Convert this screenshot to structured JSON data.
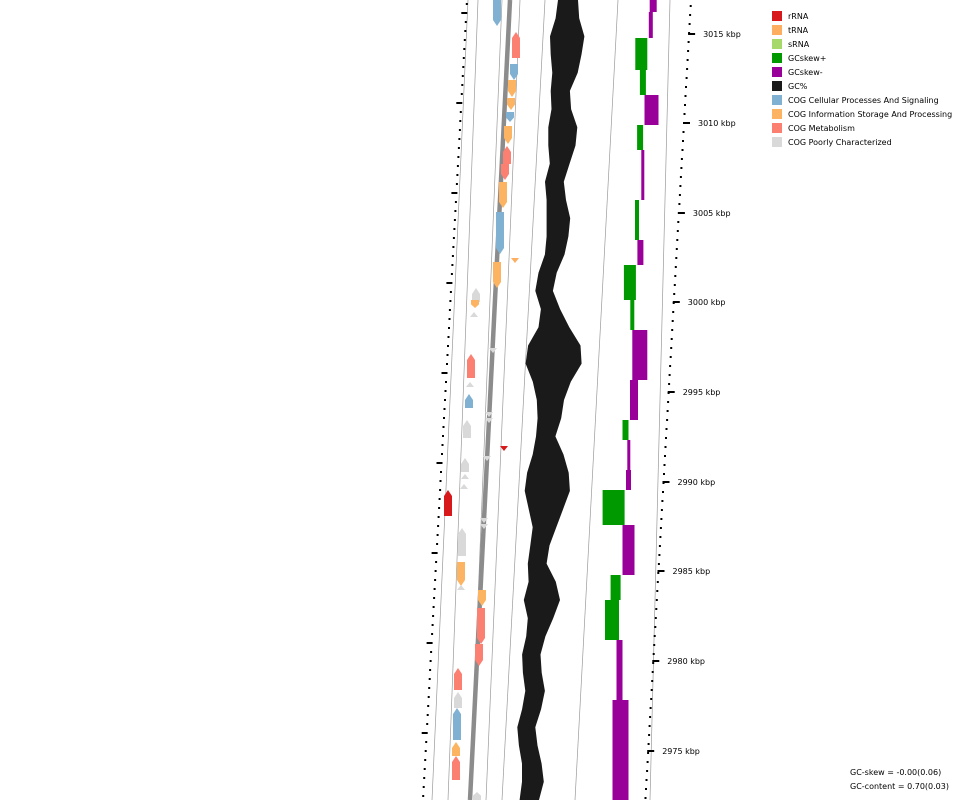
{
  "legend": [
    {
      "label": "rRNA",
      "color": "#d7191c"
    },
    {
      "label": "tRNA",
      "color": "#fdae61"
    },
    {
      "label": "sRNA",
      "color": "#a6d96a"
    },
    {
      "label": "GCskew+",
      "color": "#009900"
    },
    {
      "label": "GCskew-",
      "color": "#990099"
    },
    {
      "label": "GC%",
      "color": "#1a1a1a"
    },
    {
      "label": "COG Cellular Processes And Signaling",
      "color": "#80b1d3"
    },
    {
      "label": "COG Information Storage And Processing",
      "color": "#fdb462"
    },
    {
      "label": "COG Metabolism",
      "color": "#fb8072"
    },
    {
      "label": "COG Poorly Characterized",
      "color": "#d9d9d9"
    }
  ],
  "axis_labels": [
    "3015 kbp",
    "3010 kbp",
    "3005 kbp",
    "3000 kbp",
    "2995 kbp",
    "2990 kbp",
    "2985 kbp",
    "2980 kbp",
    "2975 kbp"
  ],
  "stats": {
    "gc_skew": "GC-skew = -0.00(0.06)",
    "gc_content": "GC-content = 0.70(0.03)"
  }
}
